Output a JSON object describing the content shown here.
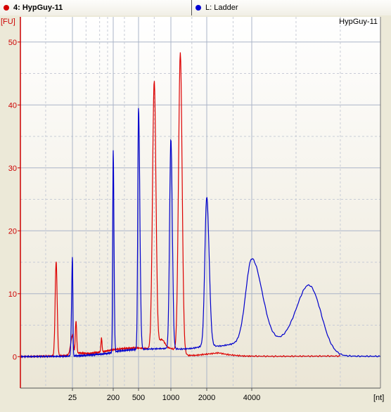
{
  "tabs": [
    {
      "label": "4: HypGuy-11",
      "color": "#d40000"
    },
    {
      "label": "L: Ladder",
      "color": "#0000d4"
    }
  ],
  "chart_data": {
    "type": "line",
    "title": "HypGuy-11",
    "ylabel": "[FU]",
    "xlabel": "[nt]",
    "ylim": [
      -5,
      54
    ],
    "yticks": [
      0,
      10,
      20,
      30,
      40,
      50
    ],
    "xticks": [
      {
        "label": "25",
        "x": 25
      },
      {
        "label": "200",
        "x": 200
      },
      {
        "label": "500",
        "x": 500
      },
      {
        "label": "1000",
        "x": 1000
      },
      {
        "label": "2000",
        "x": 2000
      },
      {
        "label": "4000",
        "x": 4000
      }
    ],
    "grid": true,
    "series": [
      {
        "name": "HypGuy-11",
        "color": "#dd0000",
        "baseline": [
          [
            6,
            0
          ],
          [
            15,
            0.1
          ],
          [
            22,
            0.2
          ],
          [
            28,
            0.6
          ],
          [
            60,
            0.5
          ],
          [
            120,
            0.8
          ],
          [
            200,
            1.1
          ],
          [
            300,
            1.3
          ],
          [
            450,
            1.4
          ],
          [
            600,
            1.3
          ],
          [
            800,
            1.2
          ],
          [
            1000,
            1.3
          ],
          [
            1200,
            0.8
          ],
          [
            1400,
            0.2
          ],
          [
            1600,
            0.2
          ],
          [
            2000,
            0.4
          ],
          [
            2400,
            0.6
          ],
          [
            2800,
            0.3
          ],
          [
            3500,
            0.1
          ],
          [
            5000,
            0.05
          ],
          [
            9000,
            0.1
          ]
        ],
        "peaks": [
          {
            "x": 16,
            "y": 15,
            "w": 0.012
          },
          {
            "x": 25,
            "y": 3.0,
            "w": 0.02
          },
          {
            "x": 30,
            "y": 5.0,
            "w": 0.015
          },
          {
            "x": 110,
            "y": 2.2,
            "w": 0.012
          },
          {
            "x": 700,
            "y": 42.5,
            "w": 0.016
          },
          {
            "x": 820,
            "y": 1.5,
            "w": 0.03
          },
          {
            "x": 1200,
            "y": 47.5,
            "w": 0.015
          }
        ]
      },
      {
        "name": "Ladder",
        "color": "#0000cc",
        "baseline": [
          [
            6,
            0
          ],
          [
            20,
            0.05
          ],
          [
            50,
            0.2
          ],
          [
            150,
            0.5
          ],
          [
            250,
            0.9
          ],
          [
            400,
            1.1
          ],
          [
            600,
            1.2
          ],
          [
            900,
            1.3
          ],
          [
            1200,
            1.2
          ],
          [
            1500,
            1.3
          ],
          [
            1800,
            1.6
          ],
          [
            2500,
            1.7
          ],
          [
            3000,
            2.0
          ],
          [
            4500,
            2.5
          ],
          [
            6000,
            1.2
          ],
          [
            7000,
            0.5
          ],
          [
            8000,
            0.1
          ],
          [
            13000,
            0.05
          ]
        ],
        "peaks": [
          {
            "x": 25,
            "y": 15.7,
            "w": 0.01
          },
          {
            "x": 200,
            "y": 32.0,
            "w": 0.012
          },
          {
            "x": 500,
            "y": 38.5,
            "w": 0.012
          },
          {
            "x": 1000,
            "y": 33.5,
            "w": 0.012
          },
          {
            "x": 2000,
            "y": 23.8,
            "w": 0.016
          },
          {
            "x": 4000,
            "y": 13.2,
            "w": 0.04
          },
          {
            "x": 6900,
            "y": 8.6,
            "w": 0.045
          },
          {
            "x": 6200,
            "y": 3.0,
            "w": 0.05
          }
        ]
      }
    ]
  }
}
